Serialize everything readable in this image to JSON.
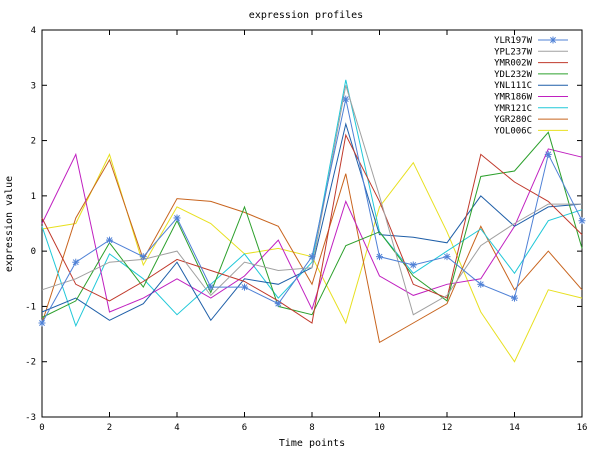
{
  "chart_data": {
    "type": "line",
    "title": "expression profiles",
    "xlabel": "Time points",
    "ylabel": "expression value",
    "xlim": [
      0,
      16
    ],
    "ylim": [
      -3,
      4
    ],
    "x_ticks": [
      0,
      2,
      4,
      6,
      8,
      10,
      12,
      14,
      16
    ],
    "y_ticks": [
      -3,
      -2,
      -1,
      0,
      1,
      2,
      3,
      4
    ],
    "grid": false,
    "legend_position": "top-right",
    "x": [
      0,
      1,
      2,
      3,
      4,
      5,
      6,
      7,
      8,
      9,
      10,
      11,
      12,
      13,
      14,
      15,
      16
    ],
    "series": [
      {
        "name": "YLR197W",
        "color": "#4f81d6",
        "marker": "star",
        "values": [
          -1.3,
          -0.2,
          0.2,
          -0.1,
          0.6,
          -0.65,
          -0.65,
          -0.95,
          -0.1,
          2.75,
          -0.1,
          -0.25,
          -0.1,
          -0.6,
          -0.85,
          1.75,
          0.55
        ]
      },
      {
        "name": "YPL237W",
        "color": "#a0a0a0",
        "marker": "none",
        "values": [
          -0.7,
          -0.5,
          -0.2,
          -0.15,
          0.0,
          -0.8,
          -0.2,
          -0.35,
          -0.3,
          3.0,
          1.0,
          -1.15,
          -0.8,
          0.1,
          0.5,
          0.85,
          0.85
        ]
      },
      {
        "name": "YMR002W",
        "color": "#c0392b",
        "marker": "none",
        "values": [
          0.6,
          -0.6,
          -0.9,
          -0.55,
          -0.15,
          -0.35,
          -0.55,
          -0.9,
          -1.3,
          2.1,
          0.9,
          -0.6,
          -0.85,
          1.75,
          1.25,
          0.9,
          0.3
        ]
      },
      {
        "name": "YDL232W",
        "color": "#2ca02c",
        "marker": "none",
        "values": [
          -1.2,
          -0.9,
          0.15,
          -0.65,
          0.55,
          -0.75,
          0.8,
          -1.0,
          -1.15,
          0.1,
          0.35,
          -0.45,
          -0.9,
          1.35,
          1.45,
          2.15,
          0.05
        ]
      },
      {
        "name": "YNL111C",
        "color": "#1f5fa8",
        "marker": "none",
        "values": [
          -1.1,
          -0.85,
          -1.25,
          -0.95,
          -0.2,
          -1.25,
          -0.5,
          -0.6,
          -0.3,
          2.3,
          0.3,
          0.25,
          0.15,
          1.0,
          0.45,
          0.8,
          0.85
        ]
      },
      {
        "name": "YMR186W",
        "color": "#c020c0",
        "marker": "none",
        "values": [
          0.5,
          1.75,
          -1.1,
          -0.85,
          -0.5,
          -0.85,
          -0.45,
          0.2,
          -1.05,
          0.9,
          -0.45,
          -0.8,
          -0.6,
          -0.5,
          0.45,
          1.85,
          1.7
        ]
      },
      {
        "name": "YMR121C",
        "color": "#20c8d8",
        "marker": "none",
        "values": [
          0.45,
          -1.35,
          -0.05,
          -0.5,
          -1.15,
          -0.6,
          -0.05,
          -0.85,
          -0.2,
          3.1,
          0.35,
          -0.4,
          0.0,
          0.4,
          -0.4,
          0.55,
          0.75
        ]
      },
      {
        "name": "YGR280C",
        "color": "#c8641e",
        "marker": "none",
        "values": [
          -1.3,
          0.6,
          1.65,
          -0.15,
          0.95,
          0.9,
          0.7,
          0.45,
          -0.6,
          1.4,
          -1.65,
          -1.3,
          -0.95,
          0.45,
          -0.7,
          0.0,
          -0.7
        ]
      },
      {
        "name": "YOL006C",
        "color": "#e8e020",
        "marker": "none",
        "values": [
          0.4,
          0.5,
          1.75,
          -0.25,
          0.8,
          0.5,
          -0.05,
          0.05,
          -0.1,
          -1.3,
          0.8,
          1.6,
          0.35,
          -1.1,
          -2.0,
          -0.7,
          -0.85
        ]
      }
    ]
  }
}
